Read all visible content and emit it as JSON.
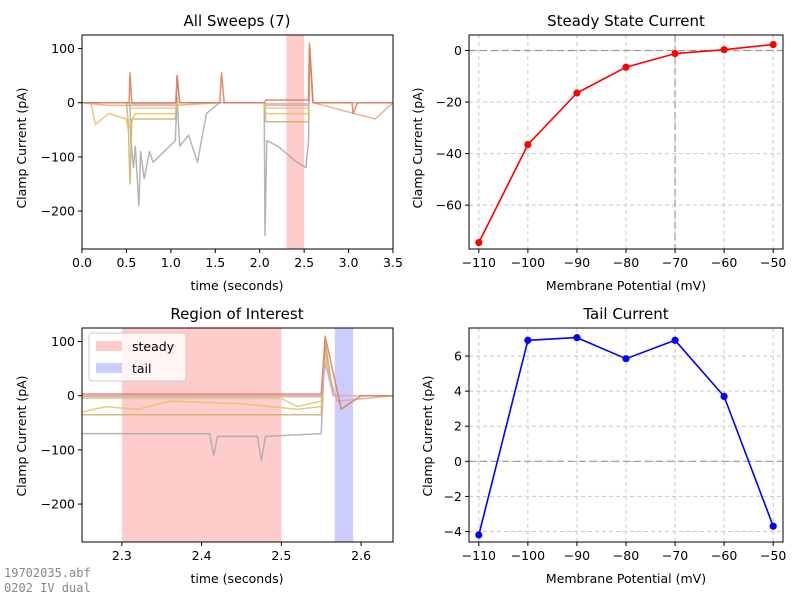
{
  "footer": {
    "filename": "19702035.abf",
    "protocol": "0202 IV dual"
  },
  "colors": {
    "steady_span": "#ffcccc",
    "tail_span": "#ccccff",
    "steady_line": "#ff0000",
    "tail_line": "#0000ff",
    "sweeps": [
      "#e6a87a",
      "#cccc88",
      "#e8c060",
      "#d0a8d8",
      "#a8a8a8",
      "#c8b068",
      "#e07850"
    ]
  },
  "chart_data": [
    {
      "id": "all-sweeps",
      "type": "line",
      "title": "All Sweeps (7)",
      "xlabel": "time (seconds)",
      "ylabel": "Clamp Current (pA)",
      "xlim": [
        0,
        3.5
      ],
      "ylim": [
        -270,
        125
      ],
      "xticks": [
        "0.0",
        "0.5",
        "1.0",
        "1.5",
        "2.0",
        "2.5",
        "3.0",
        "3.5"
      ],
      "yticks": [
        "100",
        "0",
        "−100",
        "−200"
      ],
      "spans": [
        {
          "x": [
            2.3,
            2.5
          ],
          "color": "#ffcccc"
        }
      ],
      "series": [
        {
          "color": "#a8a8a8",
          "baseline": -70,
          "values": [
            [
              0.0,
              0
            ],
            [
              0.54,
              0
            ],
            [
              0.55,
              -70
            ],
            [
              0.58,
              -120
            ],
            [
              0.6,
              -80
            ],
            [
              0.64,
              -190
            ],
            [
              0.66,
              -90
            ],
            [
              0.7,
              -140
            ],
            [
              0.76,
              -90
            ],
            [
              0.8,
              -110
            ],
            [
              1.05,
              -70
            ],
            [
              1.07,
              10
            ],
            [
              1.1,
              -80
            ],
            [
              1.2,
              -60
            ],
            [
              1.3,
              -110
            ],
            [
              1.4,
              -20
            ],
            [
              1.55,
              0
            ],
            [
              2.05,
              0
            ],
            [
              2.06,
              -245
            ],
            [
              2.08,
              -70
            ],
            [
              2.2,
              -80
            ],
            [
              2.42,
              -110
            ],
            [
              2.52,
              -120
            ],
            [
              2.55,
              -70
            ],
            [
              2.56,
              100
            ],
            [
              2.6,
              0
            ],
            [
              3.0,
              0
            ],
            [
              3.5,
              0
            ]
          ]
        },
        {
          "color": "#c8b068",
          "values": [
            [
              0.0,
              0
            ],
            [
              0.5,
              0
            ],
            [
              0.52,
              -35
            ],
            [
              0.54,
              -150
            ],
            [
              0.56,
              -30
            ],
            [
              1.05,
              -30
            ],
            [
              1.07,
              0
            ],
            [
              1.55,
              0
            ],
            [
              2.05,
              0
            ],
            [
              2.07,
              -35
            ],
            [
              2.3,
              -35
            ],
            [
              2.55,
              -35
            ],
            [
              2.56,
              100
            ],
            [
              2.6,
              0
            ],
            [
              3.5,
              0
            ]
          ]
        },
        {
          "color": "#e8c060",
          "values": [
            [
              0.0,
              0
            ],
            [
              0.1,
              0
            ],
            [
              0.15,
              -40
            ],
            [
              0.3,
              -20
            ],
            [
              0.5,
              -30
            ],
            [
              0.52,
              -50
            ],
            [
              0.6,
              -20
            ],
            [
              1.05,
              -20
            ],
            [
              1.07,
              0
            ],
            [
              2.05,
              0
            ],
            [
              2.07,
              -20
            ],
            [
              2.55,
              -20
            ],
            [
              2.56,
              100
            ],
            [
              2.6,
              0
            ],
            [
              3.5,
              0
            ]
          ]
        },
        {
          "color": "#cccc88",
          "values": [
            [
              0.0,
              0
            ],
            [
              0.5,
              0
            ],
            [
              0.55,
              -10
            ],
            [
              1.05,
              -10
            ],
            [
              1.07,
              0
            ],
            [
              2.05,
              0
            ],
            [
              2.07,
              -10
            ],
            [
              2.55,
              -10
            ],
            [
              2.56,
              100
            ],
            [
              2.6,
              0
            ],
            [
              3.5,
              0
            ]
          ]
        },
        {
          "color": "#e6a87a",
          "values": [
            [
              0.0,
              0
            ],
            [
              0.3,
              -5
            ],
            [
              0.55,
              -5
            ],
            [
              1.05,
              -5
            ],
            [
              1.55,
              0
            ],
            [
              2.05,
              0
            ],
            [
              2.07,
              -5
            ],
            [
              2.55,
              -5
            ],
            [
              2.56,
              100
            ],
            [
              2.6,
              0
            ],
            [
              3.3,
              -30
            ],
            [
              3.5,
              0
            ]
          ]
        },
        {
          "color": "#d0a8d8",
          "values": [
            [
              0.0,
              0
            ],
            [
              0.55,
              0
            ],
            [
              0.56,
              -2
            ],
            [
              1.05,
              -2
            ],
            [
              1.07,
              50
            ],
            [
              1.1,
              0
            ],
            [
              2.05,
              0
            ],
            [
              2.07,
              -2
            ],
            [
              2.55,
              -2
            ],
            [
              2.56,
              100
            ],
            [
              2.6,
              0
            ],
            [
              3.5,
              0
            ]
          ]
        },
        {
          "color": "#e07850",
          "values": [
            [
              0.0,
              0
            ],
            [
              0.53,
              0
            ],
            [
              0.54,
              55
            ],
            [
              0.56,
              0
            ],
            [
              1.06,
              0
            ],
            [
              1.07,
              50
            ],
            [
              1.1,
              0
            ],
            [
              1.55,
              0
            ],
            [
              1.57,
              55
            ],
            [
              1.6,
              0
            ],
            [
              2.05,
              0
            ],
            [
              2.07,
              5
            ],
            [
              2.55,
              5
            ],
            [
              2.56,
              110
            ],
            [
              2.6,
              0
            ],
            [
              3.04,
              0
            ],
            [
              3.05,
              -20
            ],
            [
              3.1,
              0
            ],
            [
              3.5,
              0
            ]
          ]
        }
      ]
    },
    {
      "id": "steady-state",
      "type": "line",
      "title": "Steady State Current",
      "xlabel": "Membrane Potential (mV)",
      "ylabel": "Clamp Current (pA)",
      "xlim": [
        -112,
        -48
      ],
      "ylim": [
        -77,
        6
      ],
      "xticks": [
        "−110",
        "−100",
        "−90",
        "−80",
        "−70",
        "−60",
        "−50"
      ],
      "yticks": [
        "0",
        "−20",
        "−40",
        "−60"
      ],
      "grid": true,
      "x": [
        -110,
        -100,
        -90,
        -80,
        -70,
        -60,
        -50
      ],
      "series": [
        {
          "color": "#ff0000",
          "values": [
            -74.5,
            -36.5,
            -16.5,
            -6.5,
            -1.2,
            0.3,
            2.3
          ]
        }
      ]
    },
    {
      "id": "region-of-interest",
      "type": "line",
      "title": "Region of Interest",
      "xlabel": "time (seconds)",
      "ylabel": "Clamp Current (pA)",
      "xlim": [
        2.25,
        2.64
      ],
      "ylim": [
        -270,
        125
      ],
      "xticks": [
        "2.3",
        "2.4",
        "2.5",
        "2.6"
      ],
      "yticks": [
        "100",
        "0",
        "−100",
        "−200"
      ],
      "legend": {
        "position": "top-left",
        "entries": [
          "steady",
          "tail"
        ]
      },
      "spans": [
        {
          "x": [
            2.3,
            2.5
          ],
          "color": "#ffcccc"
        },
        {
          "x": [
            2.567,
            2.59
          ],
          "color": "#ccccff"
        }
      ],
      "series": [
        {
          "color": "#a8a8a8",
          "values": [
            [
              2.25,
              -70
            ],
            [
              2.41,
              -70
            ],
            [
              2.415,
              -110
            ],
            [
              2.42,
              -75
            ],
            [
              2.47,
              -75
            ],
            [
              2.475,
              -120
            ],
            [
              2.48,
              -75
            ],
            [
              2.55,
              -70
            ],
            [
              2.555,
              100
            ],
            [
              2.565,
              0
            ],
            [
              2.64,
              0
            ]
          ]
        },
        {
          "color": "#c8b068",
          "values": [
            [
              2.25,
              -35
            ],
            [
              2.55,
              -35
            ],
            [
              2.555,
              90
            ],
            [
              2.565,
              0
            ],
            [
              2.64,
              0
            ]
          ]
        },
        {
          "color": "#e8c060",
          "values": [
            [
              2.25,
              -30
            ],
            [
              2.28,
              -20
            ],
            [
              2.32,
              -25
            ],
            [
              2.36,
              -10
            ],
            [
              2.45,
              -15
            ],
            [
              2.52,
              -25
            ],
            [
              2.55,
              -20
            ],
            [
              2.555,
              80
            ],
            [
              2.565,
              0
            ],
            [
              2.64,
              0
            ]
          ]
        },
        {
          "color": "#cccc88",
          "values": [
            [
              2.25,
              -5
            ],
            [
              2.5,
              -5
            ],
            [
              2.52,
              -20
            ],
            [
              2.55,
              -10
            ],
            [
              2.555,
              70
            ],
            [
              2.565,
              0
            ],
            [
              2.64,
              0
            ]
          ]
        },
        {
          "color": "#e6a87a",
          "values": [
            [
              2.25,
              -2
            ],
            [
              2.55,
              -2
            ],
            [
              2.555,
              60
            ],
            [
              2.57,
              -10
            ],
            [
              2.64,
              0
            ]
          ]
        },
        {
          "color": "#d0a8d8",
          "values": [
            [
              2.25,
              0
            ],
            [
              2.55,
              0
            ],
            [
              2.555,
              60
            ],
            [
              2.565,
              0
            ],
            [
              2.64,
              0
            ]
          ]
        },
        {
          "color": "#e07850",
          "values": [
            [
              2.25,
              3
            ],
            [
              2.55,
              3
            ],
            [
              2.555,
              110
            ],
            [
              2.575,
              -25
            ],
            [
              2.6,
              0
            ],
            [
              2.64,
              0
            ]
          ]
        }
      ]
    },
    {
      "id": "tail-current",
      "type": "line",
      "title": "Tail Current",
      "xlabel": "Membrane Potential (mV)",
      "ylabel": "Clamp Current (pA)",
      "xlim": [
        -112,
        -48
      ],
      "ylim": [
        -4.6,
        7.6
      ],
      "xticks": [
        "−110",
        "−100",
        "−90",
        "−80",
        "−70",
        "−60",
        "−50"
      ],
      "yticks": [
        "6",
        "4",
        "2",
        "0",
        "−2",
        "−4"
      ],
      "grid": true,
      "x": [
        -110,
        -100,
        -90,
        -80,
        -70,
        -60,
        -50
      ],
      "series": [
        {
          "color": "#0000ff",
          "values": [
            -4.2,
            6.9,
            7.05,
            5.85,
            6.9,
            3.7,
            -3.7
          ]
        }
      ]
    }
  ]
}
